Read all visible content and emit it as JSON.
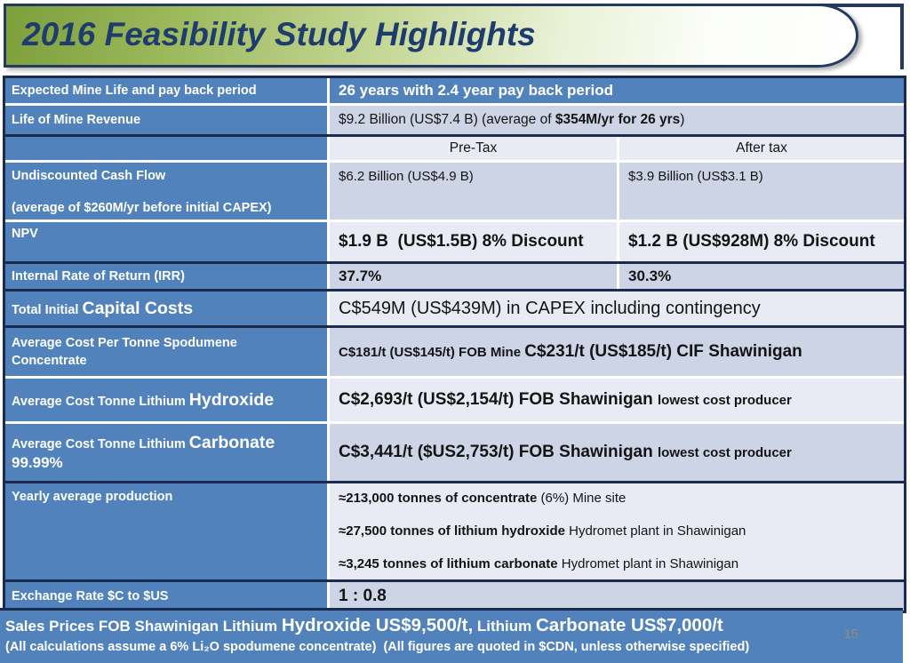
{
  "title": "2016 Feasibility Study Highlights",
  "page_number": "15",
  "colors": {
    "header_blue": "#5282BB",
    "band_dark": "#CDD4E6",
    "band_light": "#E8EBF3",
    "border_dark": "#1B2B4E",
    "title_text_navy": "#1E3C6E",
    "title_green": "#7D9F3B",
    "page_number_gray": "#8E8E7A"
  },
  "table": {
    "columns": {
      "middle_header": "Pre-Tax",
      "right_header": "After tax"
    },
    "rows": [
      {
        "key": "mine-life",
        "band": "blue",
        "sep_after": "white",
        "label": [
          [
            {
              "t": "Expected Mine Life and pay back period",
              "s": "b"
            }
          ]
        ],
        "cells": [
          {
            "span": 2,
            "lines": [
              [
                {
                  "t": "26 years with 2.4 year pay back period",
                  "s": "mb"
                }
              ]
            ]
          }
        ]
      },
      {
        "key": "revenue",
        "band": "dark",
        "sep_after": "dark",
        "label": [
          [
            {
              "t": "Life of Mine Revenue",
              "s": "b"
            }
          ]
        ],
        "cells": [
          {
            "span": 2,
            "lines": [
              [
                {
                  "t": "$9.2 Billion (US$7.4 B) (average of ",
                  "s": "mn"
                },
                {
                  "t": "$354M/yr for 26 yrs",
                  "s": "bm"
                },
                {
                  "t": ")",
                  "s": "mn"
                }
              ]
            ]
          }
        ]
      },
      {
        "key": "tax-header",
        "band": "light",
        "sep_after": "white",
        "label": [],
        "cells": [
          {
            "span": 1,
            "align": "center",
            "lines": [
              [
                {
                  "t": "Pre-Tax",
                  "s": "mn"
                }
              ]
            ]
          },
          {
            "span": 1,
            "align": "center",
            "lines": [
              [
                {
                  "t": "After tax",
                  "s": "mn"
                }
              ]
            ]
          }
        ]
      },
      {
        "key": "cash-flow",
        "band": "dark",
        "sep_after": "white",
        "label": [
          [
            {
              "t": "Undiscounted Cash Flow",
              "s": "b"
            }
          ],
          [
            {
              "t": "(average of $260M/yr before initial CAPEX)",
              "s": "b"
            }
          ]
        ],
        "cells": [
          {
            "span": 1,
            "lines": [
              [
                {
                  "t": "$6.2 Billion (US$4.9 B)",
                  "s": "n"
                }
              ]
            ]
          },
          {
            "span": 1,
            "lines": [
              [
                {
                  "t": "$3.9 Billion (US$3.1 B)",
                  "s": "n"
                }
              ]
            ]
          }
        ]
      },
      {
        "key": "npv",
        "band": "light",
        "sep_after": "dark",
        "label": [
          [
            {
              "t": "NPV",
              "s": "b"
            }
          ]
        ],
        "cells": [
          {
            "span": 1,
            "lines": [
              [
                {
                  "t": "$1.9 B  (US$1.5B) 8% Discount",
                  "s": "lb"
                }
              ]
            ]
          },
          {
            "span": 1,
            "lines": [
              [
                {
                  "t": "$1.2 B (US$928M) 8% Discount",
                  "s": "lb"
                }
              ]
            ]
          }
        ]
      },
      {
        "key": "irr",
        "band": "dark",
        "sep_after": "dark",
        "label": [
          [
            {
              "t": "Internal Rate of Return (IRR)",
              "s": "b"
            }
          ]
        ],
        "cells": [
          {
            "span": 1,
            "lines": [
              [
                {
                  "t": "37.7%",
                  "s": "mb"
                }
              ]
            ]
          },
          {
            "span": 1,
            "lines": [
              [
                {
                  "t": "30.3%",
                  "s": "mb"
                }
              ]
            ]
          }
        ]
      },
      {
        "key": "capex",
        "band": "light",
        "sep_after": "dark",
        "label": [
          [
            {
              "t": "Total Initial ",
              "s": "b"
            },
            {
              "t": "Capital Costs",
              "s": "lb"
            }
          ]
        ],
        "cells": [
          {
            "span": 2,
            "lines": [
              [
                {
                  "t": "C$549M (US$439M) in CAPEX including contingency",
                  "s": "ln"
                }
              ]
            ]
          }
        ]
      },
      {
        "key": "spodumene",
        "band": "dark",
        "sep_after": "white",
        "label": [
          [
            {
              "t": "Average Cost Per Tonne Spodumene",
              "s": "b"
            }
          ],
          [
            {
              "t": "Concentrate",
              "s": "b"
            }
          ]
        ],
        "cells": [
          {
            "span": 2,
            "lines": [
              [
                {
                  "t": "C$181/t (US$145/t) FOB Mine ",
                  "s": "b"
                },
                {
                  "t": "C$231/t (US$185/t) CIF Shawinigan",
                  "s": "lb"
                }
              ]
            ]
          }
        ]
      },
      {
        "key": "hydroxide",
        "band": "light",
        "sep_after": "white",
        "label": [
          [
            {
              "t": "Average Cost Tonne Lithium ",
              "s": "b"
            },
            {
              "t": "Hydroxide",
              "s": "lb"
            }
          ]
        ],
        "cells": [
          {
            "span": 2,
            "lines": [
              [
                {
                  "t": "C$2,693/t (US$2,154/t) FOB Shawinigan ",
                  "s": "lb"
                },
                {
                  "t": "lowest cost producer",
                  "s": "b"
                }
              ]
            ]
          }
        ]
      },
      {
        "key": "carbonate",
        "band": "dark",
        "sep_after": "dark",
        "label": [
          [
            {
              "t": "Average Cost Tonne Lithium ",
              "s": "b"
            },
            {
              "t": "Carbonate",
              "s": "lb"
            }
          ],
          [
            {
              "t": "99.99%",
              "s": "mb"
            }
          ]
        ],
        "cells": [
          {
            "span": 2,
            "lines": [
              [
                {
                  "t": "C$3,441/t ($US2,753/t) FOB Shawinigan ",
                  "s": "lb"
                },
                {
                  "t": "lowest cost producer",
                  "s": "b"
                }
              ]
            ]
          }
        ]
      },
      {
        "key": "production",
        "band": "light",
        "sep_after": "dark",
        "label": [
          [
            {
              "t": "Yearly average production",
              "s": "b"
            }
          ]
        ],
        "cells": [
          {
            "span": 2,
            "lines": [
              [
                {
                  "t": "≈213,000 tonnes of concentrate ",
                  "s": "b"
                },
                {
                  "t": "(6%) Mine site",
                  "s": "n"
                }
              ],
              [
                {
                  "t": "≈27,500 tonnes of lithium hydroxide ",
                  "s": "b"
                },
                {
                  "t": "Hydromet plant in Shawinigan",
                  "s": "n"
                }
              ],
              [
                {
                  "t": "≈3,245 tonnes of lithium carbonate ",
                  "s": "b"
                },
                {
                  "t": "Hydromet plant in Shawinigan",
                  "s": "n"
                }
              ]
            ]
          }
        ]
      },
      {
        "key": "exchange",
        "band": "dark",
        "sep_after": null,
        "label": [
          [
            {
              "t": "Exchange Rate $C to $US",
              "s": "b"
            }
          ]
        ],
        "cells": [
          {
            "span": 2,
            "lines": [
              [
                {
                  "t": "1 : 0.8",
                  "s": "lb"
                }
              ]
            ]
          }
        ]
      }
    ]
  },
  "footer": {
    "line1": [
      {
        "t": "Sales Prices FOB Shawinigan Lithium ",
        "s": "mb"
      },
      {
        "t": "Hydroxide US$9,500/t,",
        "s": "xb"
      },
      {
        "t": " Lithium ",
        "s": "mb"
      },
      {
        "t": "Carbonate US$7,000/t",
        "s": "xb"
      }
    ],
    "line2": "(All calculations assume a 6% Li₂O spodumene concentrate)  (All figures are quoted in $CDN, unless otherwise specified)"
  }
}
